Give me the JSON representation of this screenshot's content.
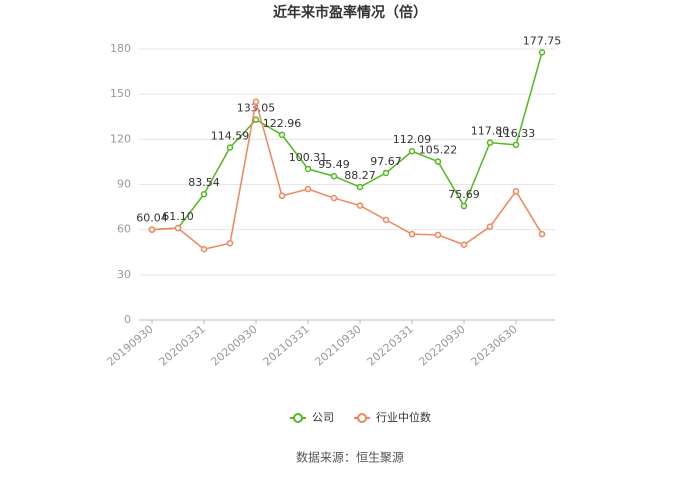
{
  "chart_data": {
    "type": "line",
    "title": "近年来市盈率情况（倍）",
    "categories": [
      "20190930",
      null,
      "20200331",
      null,
      "20200930",
      null,
      "20210331",
      null,
      "20210930",
      null,
      "20220331",
      null,
      "20220930",
      null,
      "20230630",
      null
    ],
    "series": [
      {
        "name": "公司",
        "color": "#52b81f",
        "values": [
          60.04,
          61.1,
          83.54,
          114.59,
          133.05,
          122.96,
          100.31,
          95.49,
          88.27,
          97.67,
          112.09,
          105.22,
          75.69,
          117.8,
          116.33,
          177.75
        ],
        "value_labels": [
          "60.04",
          "61.10",
          "83.54",
          "114.59",
          "133.05",
          "122.96",
          "100.31",
          "95.49",
          "88.27",
          "97.67",
          "112.09",
          "105.22",
          "75.69",
          "117.80",
          "116.33",
          "177.75"
        ]
      },
      {
        "name": "行业中位数",
        "color": "#f0865a",
        "values": [
          60,
          61,
          47,
          51,
          145,
          82.5,
          87,
          81,
          76,
          66.5,
          57,
          56.5,
          50,
          62,
          85.5,
          57
        ]
      }
    ],
    "ylim": [
      0,
      180
    ],
    "yticks": [
      0,
      30,
      60,
      90,
      120,
      150,
      180
    ],
    "grid": true,
    "legend": "bottom",
    "source": "数据来源：恒生聚源"
  }
}
